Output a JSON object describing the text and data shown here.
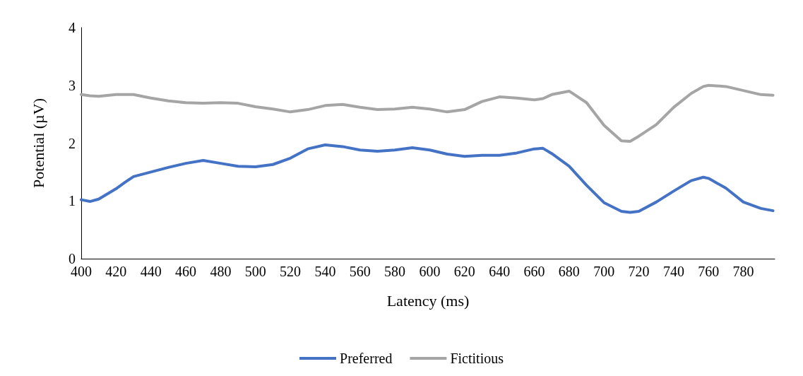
{
  "chart_data": {
    "type": "line",
    "xlabel": "Latency (ms)",
    "ylabel": "Potential (µV)",
    "xlim": [
      400,
      798
    ],
    "xticks": [
      400,
      420,
      440,
      460,
      480,
      500,
      520,
      540,
      560,
      580,
      600,
      620,
      640,
      660,
      680,
      700,
      720,
      740,
      760,
      780
    ],
    "ylim": [
      0,
      4
    ],
    "yticks": [
      0,
      1,
      2,
      3,
      4
    ],
    "grid": false,
    "legend": "bottom",
    "marker": "none",
    "line_style": "solid",
    "x": [
      400,
      405,
      410,
      420,
      425,
      430,
      440,
      450,
      460,
      470,
      480,
      490,
      500,
      510,
      520,
      530,
      540,
      550,
      560,
      570,
      580,
      590,
      600,
      610,
      620,
      630,
      640,
      650,
      660,
      665,
      670,
      680,
      690,
      700,
      710,
      715,
      720,
      730,
      740,
      750,
      757,
      760,
      770,
      780,
      790,
      797
    ],
    "series": [
      {
        "name": "Preferred",
        "color": "#4472c4",
        "values": [
          1.02,
          0.99,
          1.03,
          1.21,
          1.32,
          1.42,
          1.5,
          1.58,
          1.65,
          1.7,
          1.65,
          1.6,
          1.59,
          1.63,
          1.74,
          1.9,
          1.97,
          1.94,
          1.88,
          1.86,
          1.88,
          1.92,
          1.88,
          1.81,
          1.77,
          1.79,
          1.79,
          1.83,
          1.9,
          1.91,
          1.82,
          1.6,
          1.27,
          0.97,
          0.82,
          0.8,
          0.82,
          0.98,
          1.17,
          1.35,
          1.41,
          1.39,
          1.22,
          0.98,
          0.87,
          0.83
        ]
      },
      {
        "name": "Fictitious",
        "color": "#a5a5a5",
        "values": [
          2.84,
          2.82,
          2.81,
          2.84,
          2.84,
          2.84,
          2.78,
          2.73,
          2.7,
          2.69,
          2.7,
          2.69,
          2.63,
          2.59,
          2.54,
          2.58,
          2.65,
          2.67,
          2.62,
          2.58,
          2.59,
          2.62,
          2.59,
          2.54,
          2.58,
          2.72,
          2.8,
          2.78,
          2.75,
          2.77,
          2.84,
          2.9,
          2.7,
          2.31,
          2.04,
          2.03,
          2.12,
          2.32,
          2.62,
          2.86,
          2.98,
          3.0,
          2.98,
          2.91,
          2.84,
          2.83
        ]
      }
    ]
  }
}
